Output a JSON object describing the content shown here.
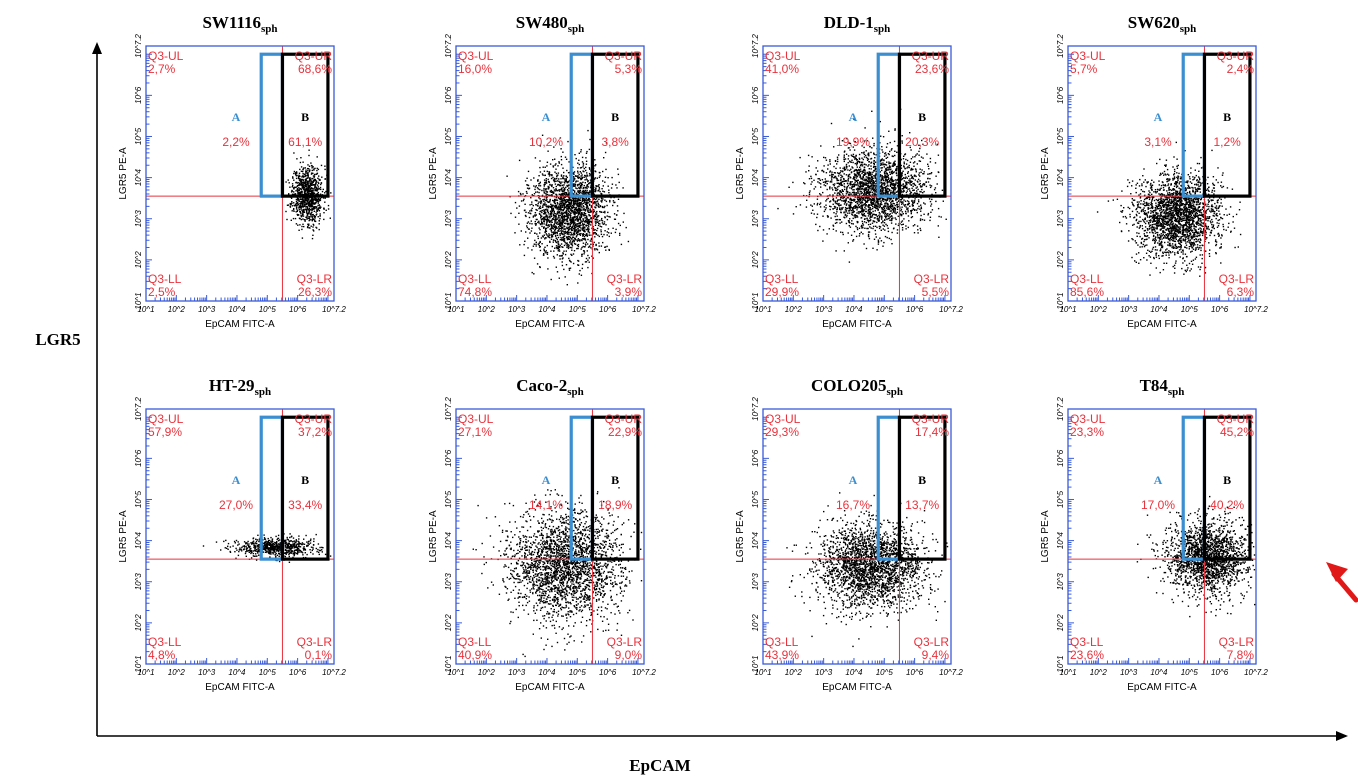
{
  "figure": {
    "x_axis_label": "EpCAM",
    "y_axis_label": "LGR5"
  },
  "colors": {
    "frame": "#3a5bd8",
    "quadrant_lines": "#e8323c",
    "quadrant_text": "#e8323c",
    "gate_a": "#3b8fd0",
    "gate_b": "#000000",
    "events": "#000000",
    "arrow": "#e01818"
  },
  "chart_data": [
    {
      "type": "scatter",
      "name_main": "SW1116",
      "name_sub": "sph",
      "xlabel": "EpCAM FITC-A",
      "ylabel": "LGR5 PE-A",
      "xlim": [
        1,
        7.2
      ],
      "ylim": [
        1,
        7.2
      ],
      "scale": "log10",
      "x_ticks": [
        "10^1",
        "10^2",
        "10^3",
        "10^4",
        "10^5",
        "10^6",
        "10^7.2"
      ],
      "y_ticks": [
        "10^1",
        "10^2",
        "10^3",
        "10^4",
        "10^5",
        "10^6",
        "10^7.2"
      ],
      "quadrant_labels": {
        "UL": "Q3-UL",
        "UR": "Q3-UR",
        "LL": "Q3-LL",
        "LR": "Q3-LR"
      },
      "quadrant_percentages": {
        "UL": "2,7%",
        "UR": "68,6%",
        "LL": "2,5%",
        "LR": "26,3%"
      },
      "gate_a_label": "A",
      "gate_a_value": "2,2%",
      "gate_b_label": "B",
      "gate_b_value": "61,1%",
      "quadrant_gate": {
        "x": 5.5,
        "y": 3.55
      },
      "gate_a_range": {
        "x": [
          4.8,
          5.5
        ],
        "y": [
          3.55,
          7.0
        ]
      },
      "gate_b_range": {
        "x": [
          5.5,
          7.0
        ],
        "y": [
          3.55,
          7.0
        ]
      },
      "density": {
        "cx": 6.3,
        "cy": 3.6,
        "sx": 0.25,
        "sy": 0.35,
        "n": 900,
        "seed": 11
      }
    },
    {
      "type": "scatter",
      "name_main": "SW480",
      "name_sub": "sph",
      "xlabel": "EpCAM FITC-A",
      "ylabel": "LGR5 PE-A",
      "xlim": [
        1,
        7.2
      ],
      "ylim": [
        1,
        7.2
      ],
      "scale": "log10",
      "x_ticks": [
        "10^1",
        "10^2",
        "10^3",
        "10^4",
        "10^5",
        "10^6",
        "10^7.2"
      ],
      "y_ticks": [
        "10^1",
        "10^2",
        "10^3",
        "10^4",
        "10^5",
        "10^6",
        "10^7.2"
      ],
      "quadrant_labels": {
        "UL": "Q3-UL",
        "UR": "Q3-UR",
        "LL": "Q3-LL",
        "LR": "Q3-LR"
      },
      "quadrant_percentages": {
        "UL": "16,0%",
        "UR": "5,3%",
        "LL": "74,8%",
        "LR": "3,9%"
      },
      "gate_a_label": "A",
      "gate_a_value": "10,2%",
      "gate_b_label": "B",
      "gate_b_value": "3,8%",
      "quadrant_gate": {
        "x": 5.5,
        "y": 3.55
      },
      "gate_a_range": {
        "x": [
          4.8,
          5.5
        ],
        "y": [
          3.55,
          7.0
        ]
      },
      "gate_b_range": {
        "x": [
          5.5,
          7.0
        ],
        "y": [
          3.55,
          7.0
        ]
      },
      "density": {
        "cx": 4.7,
        "cy": 3.2,
        "sx": 0.65,
        "sy": 0.55,
        "n": 2200,
        "seed": 23
      }
    },
    {
      "type": "scatter",
      "name_main": "DLD-1",
      "name_sub": "sph",
      "xlabel": "EpCAM FITC-A",
      "ylabel": "LGR5 PE-A",
      "xlim": [
        1,
        7.2
      ],
      "ylim": [
        1,
        7.2
      ],
      "scale": "log10",
      "x_ticks": [
        "10^1",
        "10^2",
        "10^3",
        "10^4",
        "10^5",
        "10^6",
        "10^7.2"
      ],
      "y_ticks": [
        "10^1",
        "10^2",
        "10^3",
        "10^4",
        "10^5",
        "10^6",
        "10^7.2"
      ],
      "quadrant_labels": {
        "UL": "Q3-UL",
        "UR": "Q3-UR",
        "LL": "Q3-LL",
        "LR": "Q3-LR"
      },
      "quadrant_percentages": {
        "UL": "41,0%",
        "UR": "23,6%",
        "LL": "29,9%",
        "LR": "5,5%"
      },
      "gate_a_label": "A",
      "gate_a_value": "19,9%",
      "gate_b_label": "B",
      "gate_b_value": "20,3%",
      "quadrant_gate": {
        "x": 5.5,
        "y": 3.55
      },
      "gate_a_range": {
        "x": [
          4.8,
          5.5
        ],
        "y": [
          3.55,
          7.0
        ]
      },
      "gate_b_range": {
        "x": [
          5.5,
          7.0
        ],
        "y": [
          3.55,
          7.0
        ]
      },
      "density": {
        "cx": 4.6,
        "cy": 3.7,
        "sx": 0.85,
        "sy": 0.5,
        "n": 2300,
        "seed": 37
      }
    },
    {
      "type": "scatter",
      "name_main": "SW620",
      "name_sub": "sph",
      "xlabel": "EpCAM FITC-A",
      "ylabel": "LGR5 PE-A",
      "xlim": [
        1,
        7.2
      ],
      "ylim": [
        1,
        7.2
      ],
      "scale": "log10",
      "x_ticks": [
        "10^1",
        "10^2",
        "10^3",
        "10^4",
        "10^5",
        "10^6",
        "10^7.2"
      ],
      "y_ticks": [
        "10^1",
        "10^2",
        "10^3",
        "10^4",
        "10^5",
        "10^6",
        "10^7.2"
      ],
      "quadrant_labels": {
        "UL": "Q3-UL",
        "UR": "Q3-UR",
        "LL": "Q3-LL",
        "LR": "Q3-LR"
      },
      "quadrant_percentages": {
        "UL": "5,7%",
        "UR": "2,4%",
        "LL": "85,6%",
        "LR": "6,3%"
      },
      "gate_a_label": "A",
      "gate_a_value": "3,1%",
      "gate_b_label": "B",
      "gate_b_value": "1,2%",
      "quadrant_gate": {
        "x": 5.5,
        "y": 3.55
      },
      "gate_a_range": {
        "x": [
          4.8,
          5.5
        ],
        "y": [
          3.55,
          7.0
        ]
      },
      "gate_b_range": {
        "x": [
          5.5,
          7.0
        ],
        "y": [
          3.55,
          7.0
        ]
      },
      "density": {
        "cx": 4.6,
        "cy": 3.1,
        "sx": 0.7,
        "sy": 0.5,
        "n": 2200,
        "seed": 41
      }
    },
    {
      "type": "scatter",
      "name_main": "HT-29",
      "name_sub": "sph",
      "xlabel": "EpCAM FITC-A",
      "ylabel": "LGR5 PE-A",
      "xlim": [
        1,
        7.2
      ],
      "ylim": [
        1,
        7.2
      ],
      "scale": "log10",
      "x_ticks": [
        "10^1",
        "10^2",
        "10^3",
        "10^4",
        "10^5",
        "10^6",
        "10^7.2"
      ],
      "y_ticks": [
        "10^1",
        "10^2",
        "10^3",
        "10^4",
        "10^5",
        "10^6",
        "10^7.2"
      ],
      "quadrant_labels": {
        "UL": "Q3-UL",
        "UR": "Q3-UR",
        "LL": "Q3-LL",
        "LR": "Q3-LR"
      },
      "quadrant_percentages": {
        "UL": "57,9%",
        "UR": "37,2%",
        "LL": "4,8%",
        "LR": "0,1%"
      },
      "gate_a_label": "A",
      "gate_a_value": "27,0%",
      "gate_b_label": "B",
      "gate_b_value": "33,4%",
      "quadrant_gate": {
        "x": 5.5,
        "y": 3.55
      },
      "gate_a_range": {
        "x": [
          4.8,
          5.5
        ],
        "y": [
          3.55,
          7.0
        ]
      },
      "gate_b_range": {
        "x": [
          5.5,
          7.0
        ],
        "y": [
          3.55,
          7.0
        ]
      },
      "density": {
        "cx": 5.3,
        "cy": 3.85,
        "sx": 0.7,
        "sy": 0.12,
        "n": 700,
        "seed": 53
      }
    },
    {
      "type": "scatter",
      "name_main": "Caco-2",
      "name_sub": "sph",
      "xlabel": "EpCAM FITC-A",
      "ylabel": "LGR5 PE-A",
      "xlim": [
        1,
        7.2
      ],
      "ylim": [
        1,
        7.2
      ],
      "scale": "log10",
      "x_ticks": [
        "10^1",
        "10^2",
        "10^3",
        "10^4",
        "10^5",
        "10^6",
        "10^7.2"
      ],
      "y_ticks": [
        "10^1",
        "10^2",
        "10^3",
        "10^4",
        "10^5",
        "10^6",
        "10^7.2"
      ],
      "quadrant_labels": {
        "UL": "Q3-UL",
        "UR": "Q3-UR",
        "LL": "Q3-LL",
        "LR": "Q3-LR"
      },
      "quadrant_percentages": {
        "UL": "27,1%",
        "UR": "22,9%",
        "LL": "40,9%",
        "LR": "9,0%"
      },
      "gate_a_label": "A",
      "gate_a_value": "14,1%",
      "gate_b_label": "B",
      "gate_b_value": "18,9%",
      "quadrant_gate": {
        "x": 5.5,
        "y": 3.55
      },
      "gate_a_range": {
        "x": [
          4.8,
          5.5
        ],
        "y": [
          3.55,
          7.0
        ]
      },
      "gate_b_range": {
        "x": [
          5.5,
          7.0
        ],
        "y": [
          3.55,
          7.0
        ]
      },
      "density": {
        "cx": 4.6,
        "cy": 3.4,
        "sx": 0.9,
        "sy": 0.65,
        "n": 2400,
        "seed": 67
      }
    },
    {
      "type": "scatter",
      "name_main": "COLO205",
      "name_sub": "sph",
      "xlabel": "EpCAM FITC-A",
      "ylabel": "LGR5 PE-A",
      "xlim": [
        1,
        7.2
      ],
      "ylim": [
        1,
        7.2
      ],
      "scale": "log10",
      "x_ticks": [
        "10^1",
        "10^2",
        "10^3",
        "10^4",
        "10^5",
        "10^6",
        "10^7.2"
      ],
      "y_ticks": [
        "10^1",
        "10^2",
        "10^3",
        "10^4",
        "10^5",
        "10^6",
        "10^7.2"
      ],
      "quadrant_labels": {
        "UL": "Q3-UL",
        "UR": "Q3-UR",
        "LL": "Q3-LL",
        "LR": "Q3-LR"
      },
      "quadrant_percentages": {
        "UL": "29,3%",
        "UR": "17,4%",
        "LL": "43,9%",
        "LR": "9,4%"
      },
      "gate_a_label": "A",
      "gate_a_value": "16,7%",
      "gate_b_label": "B",
      "gate_b_value": "13,7%",
      "quadrant_gate": {
        "x": 5.5,
        "y": 3.55
      },
      "gate_a_range": {
        "x": [
          4.8,
          5.5
        ],
        "y": [
          3.55,
          7.0
        ]
      },
      "gate_b_range": {
        "x": [
          5.5,
          7.0
        ],
        "y": [
          3.55,
          7.0
        ]
      },
      "density": {
        "cx": 4.5,
        "cy": 3.4,
        "sx": 0.85,
        "sy": 0.5,
        "n": 2300,
        "seed": 79
      }
    },
    {
      "type": "scatter",
      "name_main": "T84",
      "name_sub": "sph",
      "xlabel": "EpCAM FITC-A",
      "ylabel": "LGR5 PE-A",
      "xlim": [
        1,
        7.2
      ],
      "ylim": [
        1,
        7.2
      ],
      "scale": "log10",
      "x_ticks": [
        "10^1",
        "10^2",
        "10^3",
        "10^4",
        "10^5",
        "10^6",
        "10^7.2"
      ],
      "y_ticks": [
        "10^1",
        "10^2",
        "10^3",
        "10^4",
        "10^5",
        "10^6",
        "10^7.2"
      ],
      "quadrant_labels": {
        "UL": "Q3-UL",
        "UR": "Q3-UR",
        "LL": "Q3-LL",
        "LR": "Q3-LR"
      },
      "quadrant_percentages": {
        "UL": "23,3%",
        "UR": "45,2%",
        "LL": "23,6%",
        "LR": "7,8%"
      },
      "gate_a_label": "A",
      "gate_a_value": "17,0%",
      "gate_b_label": "B",
      "gate_b_value": "40,2%",
      "quadrant_gate": {
        "x": 5.5,
        "y": 3.55
      },
      "gate_a_range": {
        "x": [
          4.8,
          5.5
        ],
        "y": [
          3.55,
          7.0
        ]
      },
      "gate_b_range": {
        "x": [
          5.5,
          7.0
        ],
        "y": [
          3.55,
          7.0
        ]
      },
      "density": {
        "cx": 5.6,
        "cy": 3.6,
        "sx": 0.7,
        "sy": 0.45,
        "n": 1900,
        "seed": 97
      }
    }
  ]
}
